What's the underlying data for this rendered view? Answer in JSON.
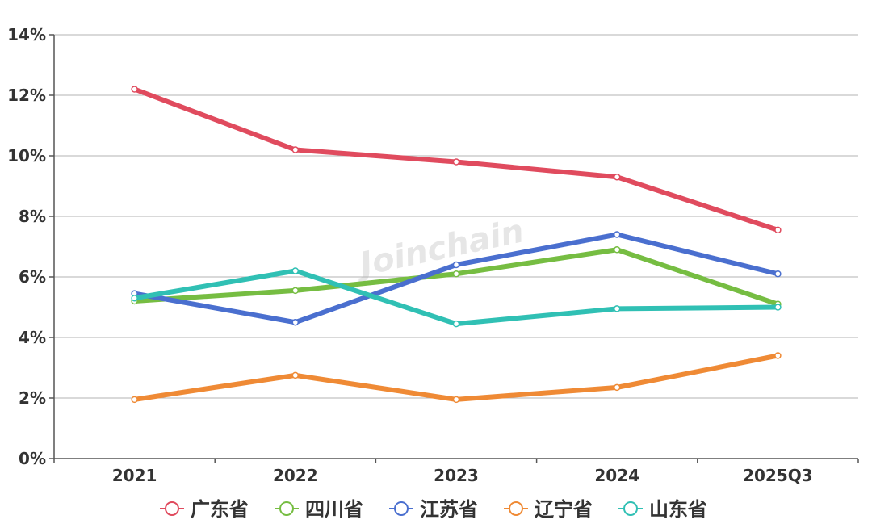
{
  "chart_data": {
    "type": "line",
    "title": "",
    "xlabel": "",
    "ylabel": "",
    "categories": [
      "2021",
      "2022",
      "2023",
      "2024",
      "2025Q3"
    ],
    "ylim": [
      0,
      14
    ],
    "y_ticks": [
      "0%",
      "2%",
      "4%",
      "6%",
      "8%",
      "10%",
      "12%",
      "14%"
    ],
    "grid": true,
    "legend_position": "bottom",
    "watermark": "Joinchain",
    "series": [
      {
        "name": "广东省",
        "color": "#e04b5e",
        "values": [
          12.2,
          10.2,
          9.8,
          9.3,
          7.55
        ]
      },
      {
        "name": "四川省",
        "color": "#76bd42",
        "values": [
          5.2,
          5.55,
          6.1,
          6.9,
          5.1
        ]
      },
      {
        "name": "江苏省",
        "color": "#4a6fcf",
        "values": [
          5.45,
          4.5,
          6.4,
          7.4,
          6.1
        ]
      },
      {
        "name": "辽宁省",
        "color": "#ef8a35",
        "values": [
          1.95,
          2.75,
          1.95,
          2.35,
          3.4
        ]
      },
      {
        "name": "山东省",
        "color": "#30c0b4",
        "values": [
          5.3,
          6.2,
          4.45,
          4.95,
          5.0
        ]
      }
    ]
  }
}
